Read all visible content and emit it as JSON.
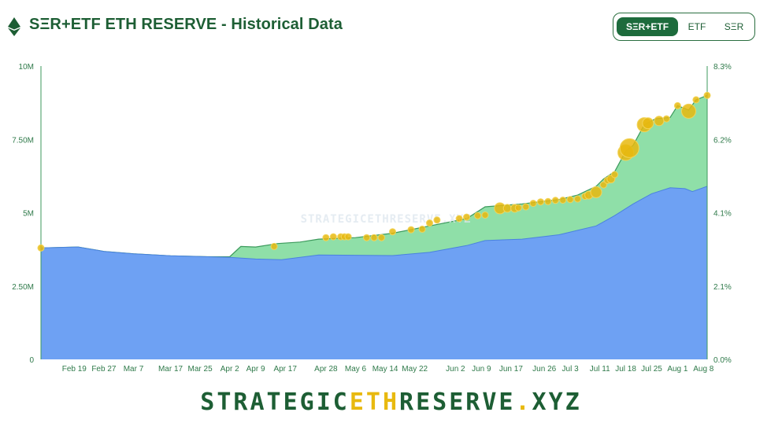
{
  "header": {
    "title": "SΞR+ETF ETH RESERVE - Historical Data",
    "toggle": [
      {
        "label": "SΞR+ETF",
        "active": true
      },
      {
        "label": "ETF",
        "active": false
      },
      {
        "label": "SΞR",
        "active": false
      }
    ]
  },
  "colors": {
    "brand_green": "#1d5e34",
    "etf_area": "#6ea1f3",
    "ser_area": "#8fdfa8",
    "bubble": "#e8b90f"
  },
  "chart_data": {
    "type": "area",
    "watermark": "STRATEGICETHRESERVE.XYZ",
    "x_tick_labels": [
      "Feb 19",
      "Feb 27",
      "Mar 7",
      "Mar 17",
      "Mar 25",
      "Apr 2",
      "Apr 9",
      "Apr 17",
      "Apr 28",
      "May 6",
      "May 14",
      "May 22",
      "Jun 2",
      "Jun 9",
      "Jun 17",
      "Jun 26",
      "Jul 3",
      "Jul 11",
      "Jul 18",
      "Jul 25",
      "Aug 1",
      "Aug 8"
    ],
    "x_tick_days": [
      9,
      17,
      25,
      35,
      43,
      51,
      58,
      66,
      77,
      85,
      93,
      101,
      112,
      119,
      127,
      136,
      143,
      151,
      158,
      165,
      172,
      179
    ],
    "x_range_days": [
      0,
      180
    ],
    "y_left_ticks": [
      "0",
      "2.50M",
      "5M",
      "7.50M",
      "10M"
    ],
    "y_left_range": [
      0,
      10000000
    ],
    "y_right_ticks": [
      "0.0%",
      "2.1%",
      "4.1%",
      "6.2%",
      "8.3%"
    ],
    "series": [
      {
        "layer": "bottom",
        "color": "#6ea1f3",
        "x": [
          0,
          10,
          17,
          25,
          35,
          45,
          51,
          58,
          65,
          70,
          75,
          85,
          95,
          105,
          115,
          120,
          130,
          140,
          145,
          150,
          155,
          160,
          165,
          170,
          174,
          176,
          180
        ],
        "y": [
          3800000,
          3830000,
          3680000,
          3600000,
          3530000,
          3500000,
          3480000,
          3420000,
          3400000,
          3480000,
          3560000,
          3550000,
          3540000,
          3650000,
          3880000,
          4050000,
          4100000,
          4250000,
          4400000,
          4550000,
          4900000,
          5300000,
          5650000,
          5850000,
          5820000,
          5720000,
          5900000
        ]
      },
      {
        "layer": "total",
        "color": "#8fdfa8",
        "x": [
          0,
          10,
          17,
          25,
          35,
          45,
          51,
          54,
          58,
          64,
          70,
          75,
          85,
          95,
          105,
          115,
          120,
          130,
          140,
          145,
          150,
          152,
          155,
          158,
          160,
          163,
          166,
          170,
          172,
          175,
          177,
          180
        ],
        "y": [
          3800000,
          3830000,
          3680000,
          3600000,
          3530000,
          3500000,
          3500000,
          3850000,
          3830000,
          3950000,
          4000000,
          4100000,
          4150000,
          4300000,
          4550000,
          4800000,
          5200000,
          5300000,
          5450000,
          5600000,
          5900000,
          6150000,
          6400000,
          7100000,
          7300000,
          8000000,
          8200000,
          8250000,
          8650000,
          8500000,
          8850000,
          9000000
        ]
      }
    ],
    "bubbles": {
      "color": "#e8b90f",
      "x": [
        0,
        63,
        77,
        79,
        81,
        82,
        83,
        88,
        90,
        92,
        95,
        100,
        103,
        105,
        107,
        113,
        115,
        118,
        120,
        124,
        126,
        128,
        129,
        131,
        133,
        135,
        137,
        139,
        141,
        143,
        145,
        147,
        148,
        150,
        152,
        153,
        154,
        155,
        158,
        159,
        163,
        164,
        167,
        169,
        172,
        175,
        177,
        180
      ],
      "y": [
        3800000,
        3850000,
        4150000,
        4180000,
        4180000,
        4180000,
        4180000,
        4150000,
        4150000,
        4150000,
        4350000,
        4420000,
        4440000,
        4650000,
        4750000,
        4800000,
        4850000,
        4900000,
        4920000,
        5150000,
        5150000,
        5150000,
        5170000,
        5200000,
        5320000,
        5370000,
        5380000,
        5420000,
        5430000,
        5450000,
        5470000,
        5560000,
        5600000,
        5700000,
        5950000,
        6100000,
        6150000,
        6300000,
        7050000,
        7200000,
        8000000,
        8050000,
        8130000,
        8200000,
        8650000,
        8460000,
        8850000,
        9000000
      ],
      "r": [
        4,
        4,
        4,
        4,
        4,
        4,
        4,
        4,
        4,
        4,
        4,
        4,
        4,
        4,
        4,
        4,
        4,
        4,
        4,
        7,
        5,
        5,
        4,
        4,
        4,
        4,
        4,
        4,
        4,
        4,
        4,
        4,
        5,
        7,
        4,
        4,
        5,
        4,
        10,
        12,
        9,
        7,
        6,
        4,
        4,
        9,
        4,
        4
      ]
    }
  },
  "footer": {
    "part1": "STRATEGIC",
    "part2": "ETH",
    "part3": "RESERVE",
    "part4": ".",
    "part5": "XYZ"
  }
}
